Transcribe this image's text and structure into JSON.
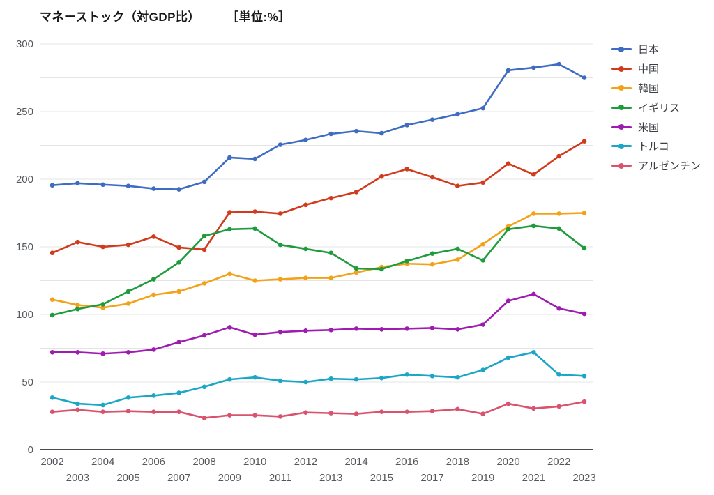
{
  "chart": {
    "title": "マネーストック（対GDP比）",
    "unit_label": "［単位:%］",
    "grid_color": "#e4e4e4",
    "axis_line_color": "#333333",
    "axis_label_color": "#54575b",
    "legend_text_color": "#3b3e42"
  },
  "chart_data": {
    "type": "line",
    "title": "マネーストック（対GDP比） ［単位:%］",
    "xlabel": "",
    "ylabel": "%",
    "x": [
      2002,
      2003,
      2004,
      2005,
      2006,
      2007,
      2008,
      2009,
      2010,
      2011,
      2012,
      2013,
      2014,
      2015,
      2016,
      2017,
      2018,
      2019,
      2020,
      2021,
      2022,
      2023
    ],
    "ylim": [
      0,
      300
    ],
    "y_label_step": 50,
    "y_grid_step": 25,
    "grid": "horizontal",
    "legend_position": "right",
    "marker": "point",
    "series": [
      {
        "key": "japan",
        "name": "日本",
        "color": "#3d6cc2",
        "values": [
          195.5,
          197,
          196,
          195,
          193,
          192.5,
          198,
          216,
          215,
          225.5,
          229,
          233.5,
          235.5,
          234,
          240,
          244,
          248,
          252.5,
          280.5,
          282.5,
          285,
          275
        ]
      },
      {
        "key": "china",
        "name": "中国",
        "color": "#d23a1c",
        "values": [
          145.5,
          153.5,
          150,
          151.5,
          157.5,
          149.5,
          148,
          175.5,
          176,
          174.5,
          181,
          186,
          190.5,
          202,
          207.5,
          201.5,
          195,
          197.5,
          211.5,
          203.5,
          217,
          228
        ]
      },
      {
        "key": "korea",
        "name": "韓国",
        "color": "#f3a218",
        "values": [
          111,
          107,
          105,
          108,
          114.5,
          117,
          123,
          130,
          125,
          126,
          127,
          127,
          131,
          135,
          137.5,
          137,
          140.5,
          152,
          165,
          174.5,
          174.5,
          175
        ]
      },
      {
        "key": "uk",
        "name": "イギリス",
        "color": "#1e9c3d",
        "values": [
          99.5,
          104,
          107.5,
          117,
          126,
          138.5,
          158,
          163,
          163.5,
          151.5,
          148.5,
          145.5,
          134,
          133.5,
          139.5,
          145,
          148.5,
          140,
          163,
          165.5,
          163.5,
          149
        ]
      },
      {
        "key": "us",
        "name": "米国",
        "color": "#9e1cb0",
        "values": [
          72,
          72,
          71,
          72,
          74,
          79.5,
          84.5,
          90.5,
          85,
          87,
          88,
          88.5,
          89.5,
          89,
          89.5,
          90,
          89,
          92.5,
          110,
          115,
          104.5,
          100.5
        ]
      },
      {
        "key": "turkey",
        "name": "トルコ",
        "color": "#1ba6c7",
        "values": [
          38.5,
          34,
          33,
          38.5,
          40,
          42,
          46.5,
          52,
          53.5,
          51,
          50,
          52.5,
          52,
          53,
          55.5,
          54.5,
          53.5,
          59,
          68,
          72,
          55.5,
          54.5
        ]
      },
      {
        "key": "argentina",
        "name": "アルゼンチン",
        "color": "#d9536f",
        "values": [
          28,
          29.5,
          28,
          28.5,
          28,
          28,
          23.5,
          25.5,
          25.5,
          24.5,
          27.5,
          27,
          26.5,
          28,
          28,
          28.5,
          30,
          26.5,
          34,
          30.5,
          32,
          35.5
        ]
      }
    ]
  }
}
